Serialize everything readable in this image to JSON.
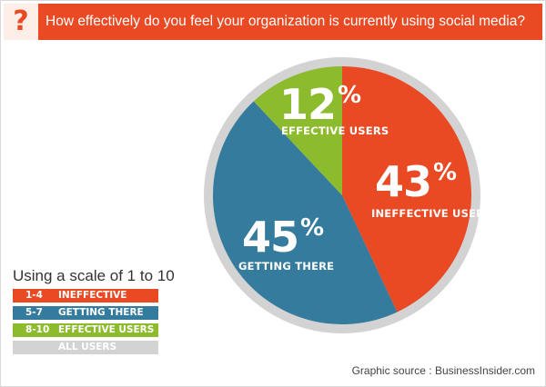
{
  "question": {
    "icon": "question-mark",
    "icon_glyph": "?",
    "text": "How effectively do you feel your organization is currently using social media?"
  },
  "chart_data": {
    "type": "pie",
    "slices": [
      {
        "pct_number": "43",
        "pct_symbol": "%",
        "value": 43,
        "label": "INEFFECTIVE USERS",
        "color": "#ea4a23"
      },
      {
        "pct_number": "45",
        "pct_symbol": "%",
        "value": 45,
        "label": "GETTING THERE",
        "color": "#357b9e"
      },
      {
        "pct_number": "12",
        "pct_symbol": "%",
        "value": 12,
        "label": "EFFECTIVE USERS",
        "color": "#8dbb2e"
      }
    ],
    "ring_color": "#d3d3d3",
    "start": "12 o'clock",
    "direction": "clockwise"
  },
  "legend": {
    "title": "Using a scale of 1 to 10",
    "items": [
      {
        "range": "1-4",
        "text": "INEFFECTIVE",
        "color": "#ea4a23"
      },
      {
        "range": "5-7",
        "text": "GETTING THERE",
        "color": "#357b9e"
      },
      {
        "range": "8-10",
        "text": "EFFECTIVE USERS",
        "color": "#8dbb2e"
      },
      {
        "range": "",
        "text": "ALL USERS",
        "color": "#d3d3d3"
      }
    ]
  },
  "source": "Graphic source : BusinessInsider.com"
}
